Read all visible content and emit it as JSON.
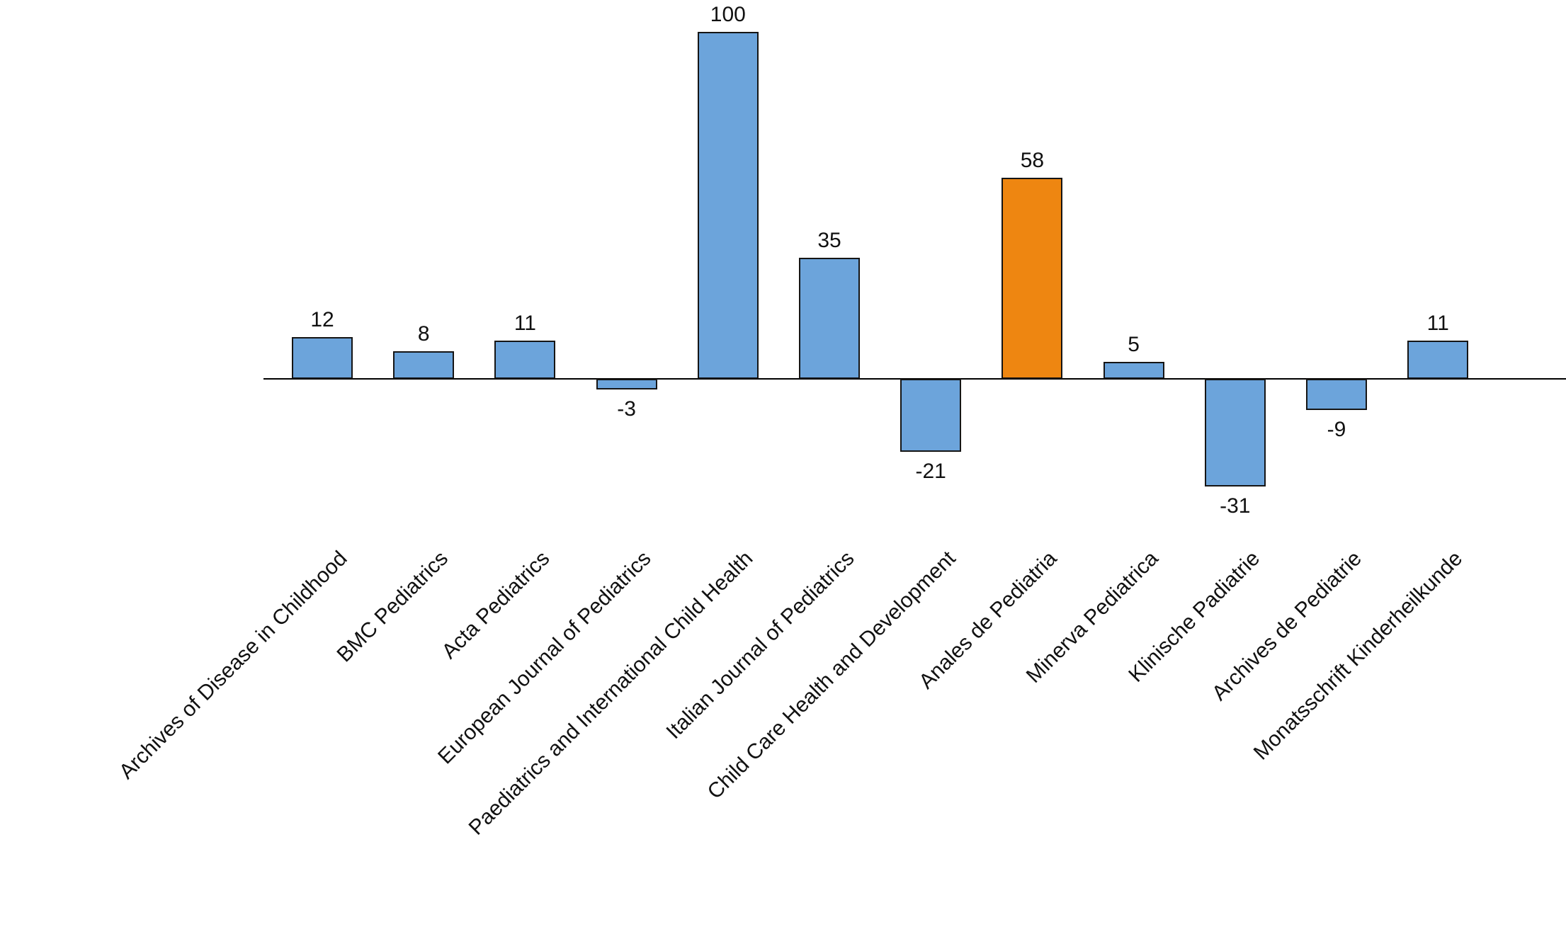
{
  "chart_data": {
    "type": "bar",
    "title": "",
    "xlabel": "",
    "ylabel": "",
    "categories": [
      "Archives of Disease in Childhood",
      "BMC Pediatrics",
      "Acta Pediatrics",
      "European Journal of Pediatrics",
      "Paediatrics and International Child Health",
      "Italian Journal of Pediatrics",
      "Child Care Health and Development",
      "Anales de Pediatria",
      "Minerva Pediatrica",
      "Klinische Padiatrie",
      "Archives de Pediatrie",
      "Monatsschrift Kinderheilkunde"
    ],
    "values": [
      12,
      8,
      11,
      -3,
      100,
      35,
      -21,
      58,
      5,
      -31,
      -9,
      11
    ],
    "value_labels": [
      "12",
      "8",
      "11",
      "-3",
      "100",
      "35",
      "-21",
      "58",
      "5",
      "-31",
      "-9",
      "11"
    ],
    "highlight_index": 7,
    "highlighted_category": "Anales de Pediatria",
    "bar_color": "#6CA4DB",
    "highlight_color": "#EE8611",
    "bar_edge_color": "#151515",
    "axis_color": "#000000",
    "ylim": [
      -31,
      100
    ],
    "grid": false,
    "legend_position": "none",
    "tick_label_rotation_deg": 45
  }
}
